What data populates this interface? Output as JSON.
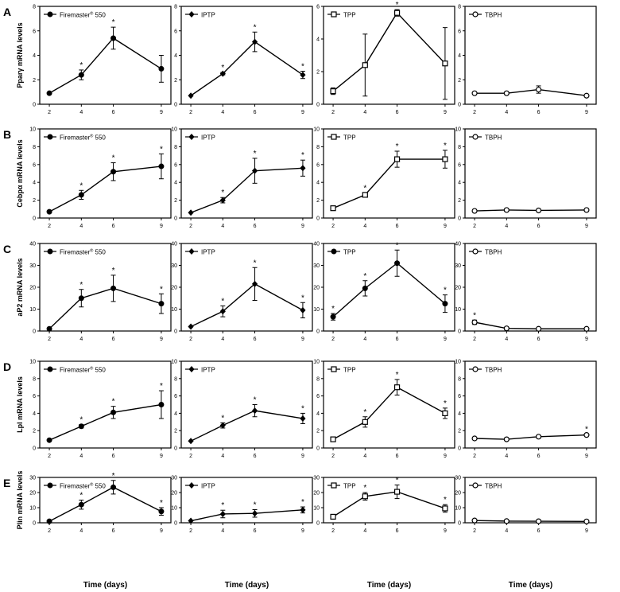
{
  "figure": {
    "x_axis_title": "Time (days)",
    "row_letters": [
      "A",
      "B",
      "C",
      "D",
      "E"
    ],
    "row_ylabels": [
      "Pparγ mRNA  levels",
      "Cebpα mRNA  levels",
      "aP2 mRNA levels",
      "Lpl mRNA levels",
      "Plin mRNA levels"
    ],
    "significance_mark": "*",
    "series_names": [
      "Firemaster",
      "IPTP",
      "TPP",
      "TBPH"
    ],
    "firemaster_superscript": "®",
    "firemaster_suffix": "550",
    "colors": {
      "line": "#000000",
      "background": "#ffffff"
    }
  },
  "chart_data": [
    {
      "type": "line",
      "row": "A",
      "ylabel": "Pparγ mRNA  levels",
      "series": [
        {
          "name": "Firemaster® 550",
          "marker": "filled-circle"
        }
      ],
      "x": [
        2,
        4,
        6,
        9
      ],
      "y": [
        0.9,
        2.4,
        5.4,
        2.9
      ],
      "err": [
        0,
        0.4,
        0.9,
        1.1
      ],
      "sig": [
        false,
        true,
        true,
        false
      ],
      "ylim": [
        0,
        8
      ],
      "yticks": [
        0,
        2,
        4,
        6,
        8
      ],
      "xticks": [
        2,
        4,
        6,
        9
      ]
    },
    {
      "type": "line",
      "row": "A",
      "series": [
        {
          "name": "IPTP",
          "marker": "filled-diamond"
        }
      ],
      "x": [
        2,
        4,
        6,
        9
      ],
      "y": [
        0.7,
        2.5,
        5.1,
        2.4
      ],
      "err": [
        0,
        0.1,
        0.8,
        0.3
      ],
      "sig": [
        false,
        true,
        true,
        true
      ],
      "ylim": [
        0,
        8
      ],
      "yticks": [
        0,
        2,
        4,
        6,
        8
      ],
      "xticks": [
        2,
        4,
        6,
        9
      ]
    },
    {
      "type": "line",
      "row": "A",
      "series": [
        {
          "name": "TPP",
          "marker": "open-square"
        }
      ],
      "x": [
        2,
        4,
        6,
        9
      ],
      "y": [
        0.8,
        2.4,
        5.6,
        2.5
      ],
      "err": [
        0.2,
        1.9,
        0.2,
        2.2
      ],
      "sig": [
        false,
        false,
        true,
        false
      ],
      "ylim": [
        0,
        6
      ],
      "yticks": [
        0,
        2,
        4,
        6
      ],
      "xticks": [
        2,
        4,
        6,
        9
      ]
    },
    {
      "type": "line",
      "row": "A",
      "series": [
        {
          "name": "TBPH",
          "marker": "open-circle"
        }
      ],
      "x": [
        2,
        4,
        6,
        9
      ],
      "y": [
        0.9,
        0.9,
        1.2,
        0.7
      ],
      "err": [
        0.05,
        0.05,
        0.3,
        0.05
      ],
      "sig": [
        false,
        false,
        false,
        false
      ],
      "ylim": [
        0,
        8
      ],
      "yticks": [
        0,
        2,
        4,
        6,
        8
      ],
      "xticks": [
        2,
        4,
        6,
        9
      ]
    },
    {
      "type": "line",
      "row": "B",
      "ylabel": "Cebpα mRNA  levels",
      "series": [
        {
          "name": "Firemaster® 550",
          "marker": "filled-circle"
        }
      ],
      "x": [
        2,
        4,
        6,
        9
      ],
      "y": [
        0.7,
        2.6,
        5.2,
        5.8
      ],
      "err": [
        0,
        0.5,
        1.0,
        1.4
      ],
      "sig": [
        false,
        true,
        true,
        true
      ],
      "ylim": [
        0,
        10
      ],
      "yticks": [
        0,
        2,
        4,
        6,
        8,
        10
      ],
      "xticks": [
        2,
        4,
        6,
        9
      ]
    },
    {
      "type": "line",
      "row": "B",
      "series": [
        {
          "name": "IPTP",
          "marker": "filled-diamond"
        }
      ],
      "x": [
        2,
        4,
        6,
        9
      ],
      "y": [
        0.6,
        2.0,
        5.3,
        5.6
      ],
      "err": [
        0,
        0.3,
        1.4,
        0.9
      ],
      "sig": [
        false,
        true,
        true,
        true
      ],
      "ylim": [
        0,
        10
      ],
      "yticks": [
        0,
        2,
        4,
        6,
        8,
        10
      ],
      "xticks": [
        2,
        4,
        6,
        9
      ]
    },
    {
      "type": "line",
      "row": "B",
      "series": [
        {
          "name": "TPP",
          "marker": "open-square"
        }
      ],
      "x": [
        2,
        4,
        6,
        9
      ],
      "y": [
        1.1,
        2.6,
        6.6,
        6.6
      ],
      "err": [
        0.1,
        0.2,
        0.9,
        1.0
      ],
      "sig": [
        false,
        true,
        true,
        true
      ],
      "ylim": [
        0,
        10
      ],
      "yticks": [
        0,
        2,
        4,
        6,
        8,
        10
      ],
      "xticks": [
        2,
        4,
        6,
        9
      ]
    },
    {
      "type": "line",
      "row": "B",
      "series": [
        {
          "name": "TBPH",
          "marker": "open-circle"
        }
      ],
      "x": [
        2,
        4,
        6,
        9
      ],
      "y": [
        0.8,
        0.9,
        0.85,
        0.9
      ],
      "err": [
        0.05,
        0.05,
        0.05,
        0.05
      ],
      "sig": [
        false,
        false,
        false,
        false
      ],
      "ylim": [
        0,
        10
      ],
      "yticks": [
        0,
        2,
        4,
        6,
        8,
        10
      ],
      "xticks": [
        2,
        4,
        6,
        9
      ]
    },
    {
      "type": "line",
      "row": "C",
      "ylabel": "aP2 mRNA levels",
      "series": [
        {
          "name": "Firemaster® 550",
          "marker": "filled-circle"
        }
      ],
      "x": [
        2,
        4,
        6,
        9
      ],
      "y": [
        1,
        15,
        19.5,
        12.5
      ],
      "err": [
        0,
        4,
        6,
        4.5
      ],
      "sig": [
        false,
        true,
        true,
        true
      ],
      "ylim": [
        0,
        40
      ],
      "yticks": [
        0,
        10,
        20,
        30,
        40
      ],
      "xticks": [
        2,
        4,
        6,
        9
      ]
    },
    {
      "type": "line",
      "row": "C",
      "series": [
        {
          "name": "IPTP",
          "marker": "filled-diamond"
        }
      ],
      "x": [
        2,
        4,
        6,
        9
      ],
      "y": [
        2,
        9,
        21.5,
        9.5
      ],
      "err": [
        0,
        2.5,
        7.5,
        3.5
      ],
      "sig": [
        false,
        true,
        true,
        true
      ],
      "ylim": [
        0,
        40
      ],
      "yticks": [
        0,
        10,
        20,
        30,
        40
      ],
      "xticks": [
        2,
        4,
        6,
        9
      ]
    },
    {
      "type": "line",
      "row": "C",
      "series": [
        {
          "name": "TPP",
          "marker": "filled-circle"
        }
      ],
      "x": [
        2,
        4,
        6,
        9
      ],
      "y": [
        6.5,
        19.5,
        31,
        12.5
      ],
      "err": [
        1.5,
        3.5,
        6,
        4
      ],
      "sig": [
        true,
        true,
        true,
        true
      ],
      "ylim": [
        0,
        40
      ],
      "yticks": [
        0,
        10,
        20,
        30,
        40
      ],
      "xticks": [
        2,
        4,
        6,
        9
      ]
    },
    {
      "type": "line",
      "row": "C",
      "series": [
        {
          "name": "TBPH",
          "marker": "open-circle"
        }
      ],
      "x": [
        2,
        4,
        6,
        9
      ],
      "y": [
        4,
        1.2,
        1,
        1
      ],
      "err": [
        1,
        0.2,
        0.2,
        0.2
      ],
      "sig": [
        true,
        false,
        false,
        false
      ],
      "ylim": [
        0,
        40
      ],
      "yticks": [
        0,
        10,
        20,
        30,
        40
      ],
      "xticks": [
        2,
        4,
        6,
        9
      ]
    },
    {
      "type": "line",
      "row": "D",
      "ylabel": "Lpl mRNA levels",
      "series": [
        {
          "name": "Firemaster® 550",
          "marker": "filled-circle"
        }
      ],
      "x": [
        2,
        4,
        6,
        9
      ],
      "y": [
        0.9,
        2.5,
        4.1,
        5
      ],
      "err": [
        0,
        0.2,
        0.7,
        1.6
      ],
      "sig": [
        false,
        true,
        true,
        true
      ],
      "ylim": [
        0,
        10
      ],
      "yticks": [
        0,
        2,
        4,
        6,
        8,
        10
      ],
      "xticks": [
        2,
        4,
        6,
        9
      ]
    },
    {
      "type": "line",
      "row": "D",
      "series": [
        {
          "name": "IPTP",
          "marker": "filled-diamond"
        }
      ],
      "x": [
        2,
        4,
        6,
        9
      ],
      "y": [
        0.8,
        2.6,
        4.3,
        3.4
      ],
      "err": [
        0,
        0.3,
        0.7,
        0.6
      ],
      "sig": [
        false,
        true,
        true,
        true
      ],
      "ylim": [
        0,
        10
      ],
      "yticks": [
        0,
        2,
        4,
        6,
        8,
        10
      ],
      "xticks": [
        2,
        4,
        6,
        9
      ]
    },
    {
      "type": "line",
      "row": "D",
      "series": [
        {
          "name": "TPP",
          "marker": "open-square"
        }
      ],
      "x": [
        2,
        4,
        6,
        9
      ],
      "y": [
        1,
        3,
        7,
        4
      ],
      "err": [
        0.1,
        0.6,
        0.9,
        0.6
      ],
      "sig": [
        false,
        true,
        true,
        true
      ],
      "ylim": [
        0,
        10
      ],
      "yticks": [
        0,
        2,
        4,
        6,
        8,
        10
      ],
      "xticks": [
        2,
        4,
        6,
        9
      ]
    },
    {
      "type": "line",
      "row": "D",
      "series": [
        {
          "name": "TBPH",
          "marker": "open-circle"
        }
      ],
      "x": [
        2,
        4,
        6,
        9
      ],
      "y": [
        1.1,
        1,
        1.3,
        1.5
      ],
      "err": [
        0.1,
        0.1,
        0.1,
        0.1
      ],
      "sig": [
        false,
        false,
        false,
        true
      ],
      "ylim": [
        0,
        10
      ],
      "yticks": [
        0,
        2,
        4,
        6,
        8,
        10
      ],
      "xticks": [
        2,
        4,
        6,
        9
      ]
    },
    {
      "type": "line",
      "row": "E",
      "ylabel": "Plin mRNA levels",
      "series": [
        {
          "name": "Firemaster® 550",
          "marker": "filled-circle"
        }
      ],
      "x": [
        2,
        4,
        6,
        9
      ],
      "y": [
        1,
        12,
        23.5,
        7.5
      ],
      "err": [
        0,
        3,
        4.5,
        2.5
      ],
      "sig": [
        false,
        true,
        true,
        true
      ],
      "ylim": [
        0,
        30
      ],
      "yticks": [
        0,
        10,
        20,
        30
      ],
      "xticks": [
        2,
        4,
        6,
        9
      ]
    },
    {
      "type": "line",
      "row": "E",
      "series": [
        {
          "name": "IPTP",
          "marker": "filled-diamond"
        }
      ],
      "x": [
        2,
        4,
        6,
        9
      ],
      "y": [
        1.3,
        5.8,
        6.2,
        8.5
      ],
      "err": [
        0,
        2.5,
        2.5,
        2
      ],
      "sig": [
        false,
        true,
        true,
        true
      ],
      "ylim": [
        0,
        30
      ],
      "yticks": [
        0,
        10,
        20,
        30
      ],
      "xticks": [
        2,
        4,
        6,
        9
      ]
    },
    {
      "type": "line",
      "row": "E",
      "series": [
        {
          "name": "TPP",
          "marker": "open-square"
        }
      ],
      "x": [
        2,
        4,
        6,
        9
      ],
      "y": [
        4,
        17.5,
        20.5,
        9.5
      ],
      "err": [
        0.3,
        2.5,
        4.5,
        2.5
      ],
      "sig": [
        false,
        true,
        true,
        true
      ],
      "ylim": [
        0,
        30
      ],
      "yticks": [
        0,
        10,
        20,
        30
      ],
      "xticks": [
        2,
        4,
        6,
        9
      ]
    },
    {
      "type": "line",
      "row": "E",
      "series": [
        {
          "name": "TBPH",
          "marker": "open-circle"
        }
      ],
      "x": [
        2,
        4,
        6,
        9
      ],
      "y": [
        1.5,
        1.1,
        1,
        0.9
      ],
      "err": [
        0.1,
        0.1,
        0.1,
        0.1
      ],
      "sig": [
        false,
        false,
        false,
        false
      ],
      "ylim": [
        0,
        30
      ],
      "yticks": [
        0,
        10,
        20,
        30
      ],
      "xticks": [
        2,
        4,
        6,
        9
      ]
    }
  ]
}
